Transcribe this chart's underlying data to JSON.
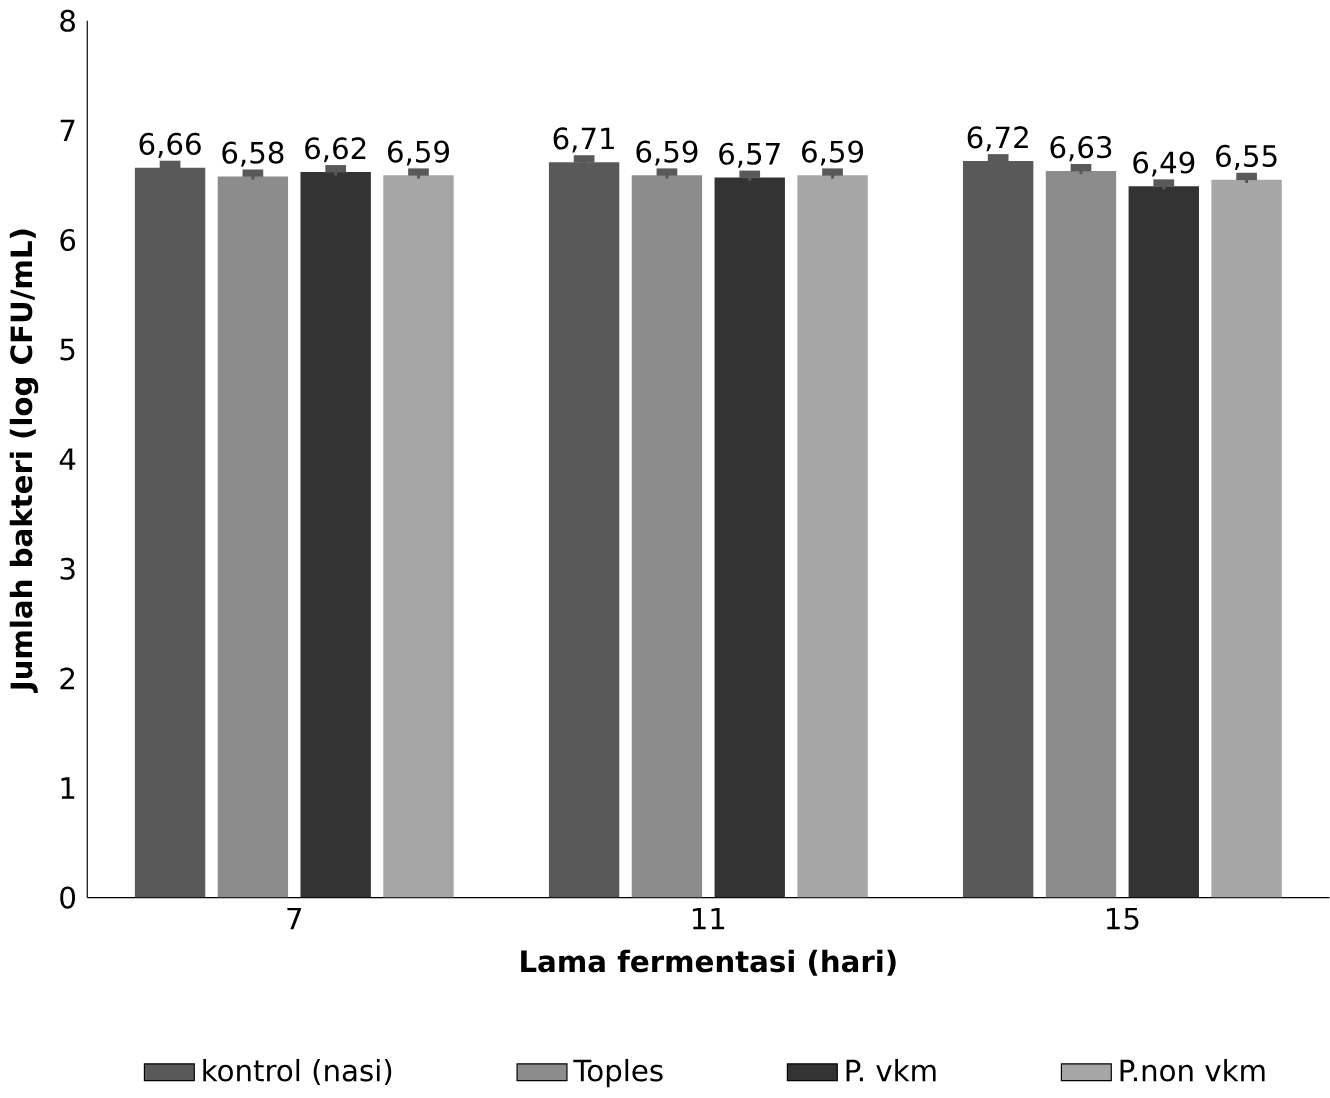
{
  "chart_data": {
    "type": "bar",
    "xlabel": "Lama fermentasi (hari)",
    "ylabel": "Jumlah bakteri (log CFU/mL)",
    "categories": [
      "7",
      "11",
      "15"
    ],
    "series": [
      {
        "name": "kontrol (nasi)",
        "color": "#595959",
        "values": [
          6.66,
          6.71,
          6.72
        ],
        "errors": [
          0.03,
          0.03,
          0.03
        ],
        "value_labels": [
          "6,66",
          "6,71",
          "6,72"
        ]
      },
      {
        "name": "Toples",
        "color": "#8c8c8c",
        "values": [
          6.58,
          6.59,
          6.63
        ],
        "errors": [
          0.03,
          0.03,
          0.03
        ],
        "value_labels": [
          "6,58",
          "6,59",
          "6,63"
        ]
      },
      {
        "name": "P. vkm",
        "color": "#333333",
        "values": [
          6.62,
          6.57,
          6.49
        ],
        "errors": [
          0.03,
          0.03,
          0.03
        ],
        "value_labels": [
          "6,62",
          "6,57",
          "6,49"
        ]
      },
      {
        "name": "P.non vkm",
        "color": "#a6a6a6",
        "values": [
          6.59,
          6.59,
          6.55
        ],
        "errors": [
          0.03,
          0.03,
          0.03
        ],
        "value_labels": [
          "6,59",
          "6,59",
          "6,55"
        ]
      }
    ],
    "ylim": [
      0,
      8
    ],
    "yticks": [
      0,
      1,
      2,
      3,
      4,
      5,
      6,
      7,
      8
    ],
    "legend": "bottom"
  }
}
